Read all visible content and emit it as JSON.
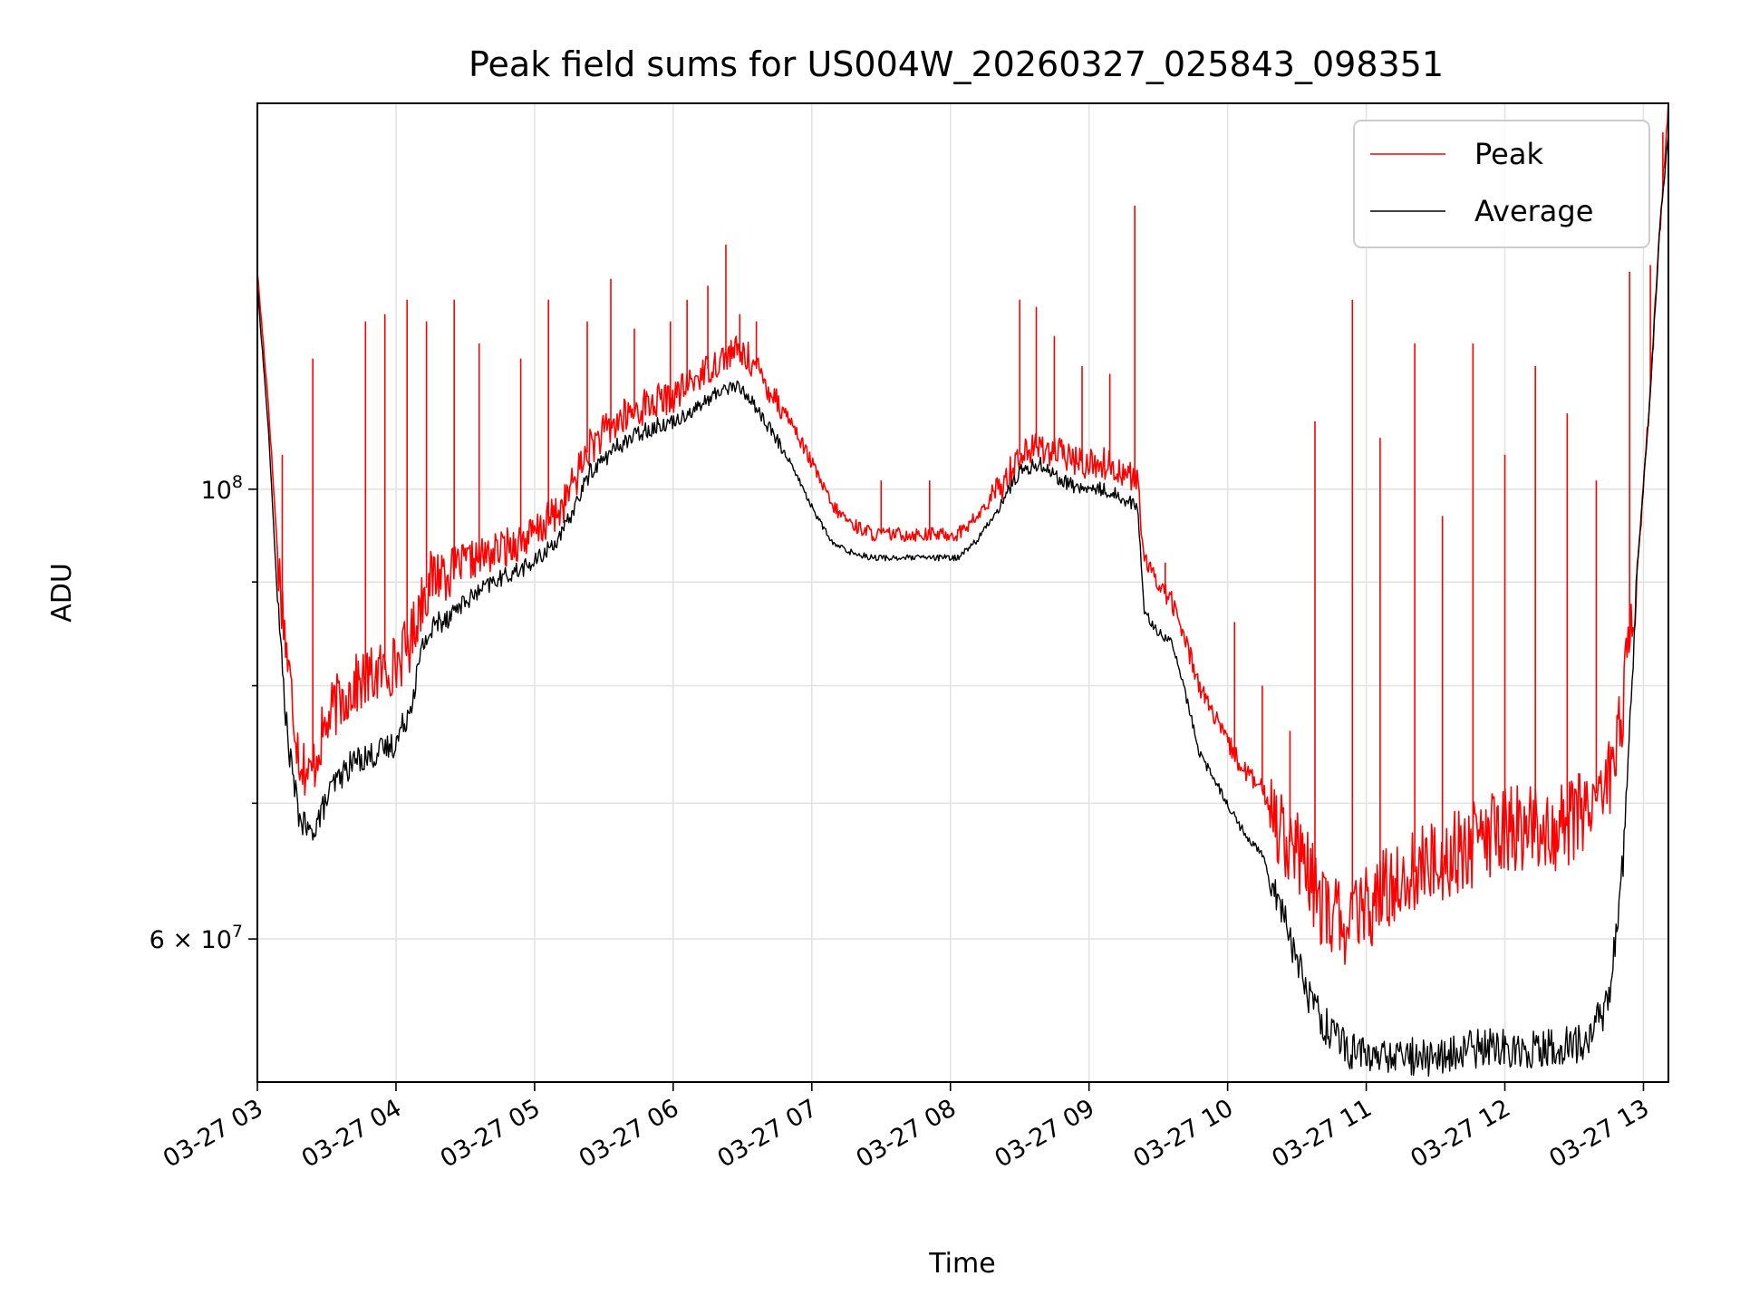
{
  "chart_data": {
    "type": "line",
    "title": "Peak field sums for US004W_20260327_025843_098351",
    "xlabel": "Time",
    "ylabel": "ADU",
    "yscale": "log",
    "xlim_hours": [
      3.0,
      13.18
    ],
    "ylim": [
      51000000,
      155000000
    ],
    "x_ticks": [
      {
        "h": 3,
        "label": "03-27 03"
      },
      {
        "h": 4,
        "label": "03-27 04"
      },
      {
        "h": 5,
        "label": "03-27 05"
      },
      {
        "h": 6,
        "label": "03-27 06"
      },
      {
        "h": 7,
        "label": "03-27 07"
      },
      {
        "h": 8,
        "label": "03-27 08"
      },
      {
        "h": 9,
        "label": "03-27 09"
      },
      {
        "h": 10,
        "label": "03-27 10"
      },
      {
        "h": 11,
        "label": "03-27 11"
      },
      {
        "h": 12,
        "label": "03-27 12"
      },
      {
        "h": 13,
        "label": "03-27 13"
      }
    ],
    "y_major_ticks": [
      {
        "v": 100000000,
        "base": "10",
        "exp": "8",
        "coef": ""
      },
      {
        "v": 60000000,
        "base": "10",
        "exp": "7",
        "coef": "6 × "
      }
    ],
    "y_minor_ticks": [
      70000000,
      80000000,
      90000000
    ],
    "legend_position": "upper right",
    "grid": true,
    "series": [
      {
        "name": "Peak",
        "color": "#ff0000",
        "x_hours": [
          3.0,
          3.08,
          3.15,
          3.22,
          3.3,
          3.38,
          3.45,
          3.55,
          3.7,
          3.85,
          4.0,
          4.1,
          4.2,
          4.3,
          4.5,
          4.7,
          4.85,
          5.0,
          5.2,
          5.4,
          5.6,
          5.8,
          6.0,
          6.2,
          6.35,
          6.45,
          6.55,
          6.7,
          6.85,
          7.0,
          7.15,
          7.3,
          7.45,
          7.6,
          7.75,
          7.9,
          8.05,
          8.2,
          8.35,
          8.5,
          8.65,
          8.8,
          8.95,
          9.1,
          9.25,
          9.35,
          9.4,
          9.5,
          9.6,
          9.7,
          9.8,
          9.95,
          10.1,
          10.25,
          10.4,
          10.55,
          10.7,
          10.85,
          11.0,
          11.2,
          11.4,
          11.6,
          11.8,
          12.0,
          12.2,
          12.4,
          12.6,
          12.75,
          12.85,
          12.95,
          13.05,
          13.12,
          13.18
        ],
        "values": [
          128000000,
          110000000,
          92000000,
          82000000,
          74000000,
          72000000,
          75000000,
          78000000,
          80000000,
          81000000,
          82000000,
          84000000,
          89000000,
          91000000,
          92000000,
          93000000,
          94000000,
          95000000,
          98000000,
          105000000,
          108000000,
          110000000,
          111000000,
          114000000,
          116000000,
          117000000,
          116000000,
          112000000,
          108000000,
          103000000,
          98000000,
          96000000,
          95000000,
          95000000,
          95000000,
          95000000,
          95000000,
          97000000,
          100000000,
          104000000,
          105000000,
          104000000,
          103000000,
          103000000,
          102000000,
          101000000,
          92000000,
          90000000,
          88000000,
          84000000,
          80000000,
          76000000,
          73000000,
          71000000,
          68000000,
          65000000,
          62000000,
          61000000,
          62000000,
          64000000,
          65000000,
          66000000,
          67000000,
          68000000,
          68000000,
          68000000,
          70000000,
          72000000,
          78000000,
          90000000,
          112000000,
          135000000,
          155000000
        ],
        "spikes": [
          {
            "h": 3.18,
            "v": 104000000
          },
          {
            "h": 3.4,
            "v": 116000000
          },
          {
            "h": 3.78,
            "v": 121000000
          },
          {
            "h": 3.92,
            "v": 122000000
          },
          {
            "h": 4.08,
            "v": 124000000
          },
          {
            "h": 4.22,
            "v": 121000000
          },
          {
            "h": 4.42,
            "v": 124000000
          },
          {
            "h": 4.6,
            "v": 118000000
          },
          {
            "h": 4.9,
            "v": 116000000
          },
          {
            "h": 5.1,
            "v": 124000000
          },
          {
            "h": 5.38,
            "v": 121000000
          },
          {
            "h": 5.55,
            "v": 127000000
          },
          {
            "h": 5.72,
            "v": 120000000
          },
          {
            "h": 5.98,
            "v": 121000000
          },
          {
            "h": 6.1,
            "v": 124000000
          },
          {
            "h": 6.25,
            "v": 126000000
          },
          {
            "h": 6.38,
            "v": 132000000
          },
          {
            "h": 6.48,
            "v": 122000000
          },
          {
            "h": 6.6,
            "v": 121000000
          },
          {
            "h": 7.5,
            "v": 101000000
          },
          {
            "h": 7.85,
            "v": 101000000
          },
          {
            "h": 8.5,
            "v": 124000000
          },
          {
            "h": 8.62,
            "v": 123000000
          },
          {
            "h": 8.75,
            "v": 119000000
          },
          {
            "h": 8.95,
            "v": 115000000
          },
          {
            "h": 9.15,
            "v": 114000000
          },
          {
            "h": 9.33,
            "v": 138000000
          },
          {
            "h": 9.55,
            "v": 92000000
          },
          {
            "h": 10.05,
            "v": 86000000
          },
          {
            "h": 10.25,
            "v": 80000000
          },
          {
            "h": 10.45,
            "v": 76000000
          },
          {
            "h": 10.63,
            "v": 108000000
          },
          {
            "h": 10.9,
            "v": 124000000
          },
          {
            "h": 11.1,
            "v": 106000000
          },
          {
            "h": 11.35,
            "v": 118000000
          },
          {
            "h": 11.55,
            "v": 97000000
          },
          {
            "h": 11.77,
            "v": 118000000
          },
          {
            "h": 12.0,
            "v": 104000000
          },
          {
            "h": 12.22,
            "v": 115000000
          },
          {
            "h": 12.45,
            "v": 109000000
          },
          {
            "h": 12.66,
            "v": 101000000
          },
          {
            "h": 12.9,
            "v": 128000000
          },
          {
            "h": 13.05,
            "v": 129000000
          },
          {
            "h": 13.14,
            "v": 150000000
          }
        ]
      },
      {
        "name": "Average",
        "color": "#000000",
        "x_hours": [
          3.0,
          3.08,
          3.15,
          3.22,
          3.3,
          3.38,
          3.45,
          3.55,
          3.7,
          3.85,
          4.0,
          4.1,
          4.2,
          4.3,
          4.5,
          4.7,
          4.85,
          5.0,
          5.2,
          5.4,
          5.6,
          5.8,
          6.0,
          6.2,
          6.35,
          6.45,
          6.55,
          6.7,
          6.85,
          7.0,
          7.15,
          7.3,
          7.45,
          7.6,
          7.75,
          7.9,
          8.05,
          8.2,
          8.35,
          8.5,
          8.65,
          8.8,
          8.95,
          9.1,
          9.25,
          9.35,
          9.4,
          9.5,
          9.6,
          9.7,
          9.8,
          9.95,
          10.1,
          10.25,
          10.4,
          10.55,
          10.7,
          10.85,
          11.0,
          11.2,
          11.4,
          11.6,
          11.8,
          12.0,
          12.2,
          12.4,
          12.6,
          12.75,
          12.85,
          12.95,
          13.05,
          13.12,
          13.18
        ],
        "values": [
          126000000,
          107000000,
          87000000,
          75000000,
          69000000,
          67500000,
          69000000,
          71500000,
          73500000,
          74000000,
          75000000,
          78000000,
          84000000,
          86000000,
          88000000,
          90000000,
          91000000,
          92000000,
          95000000,
          102000000,
          105000000,
          107000000,
          108000000,
          110000000,
          112000000,
          112500000,
          111000000,
          107000000,
          103000000,
          98000000,
          94000000,
          93000000,
          92500000,
          92500000,
          92500000,
          92500000,
          92500000,
          94500000,
          98000000,
          102000000,
          103000000,
          101000000,
          100000000,
          100000000,
          99000000,
          98000000,
          87000000,
          85000000,
          84000000,
          79000000,
          74000000,
          71000000,
          68000000,
          66000000,
          62000000,
          57000000,
          54500000,
          53000000,
          52500000,
          52500000,
          52500000,
          52500000,
          53000000,
          53000000,
          53000000,
          53000000,
          53500000,
          56000000,
          65000000,
          90000000,
          112000000,
          135000000,
          150000000
        ]
      }
    ]
  }
}
